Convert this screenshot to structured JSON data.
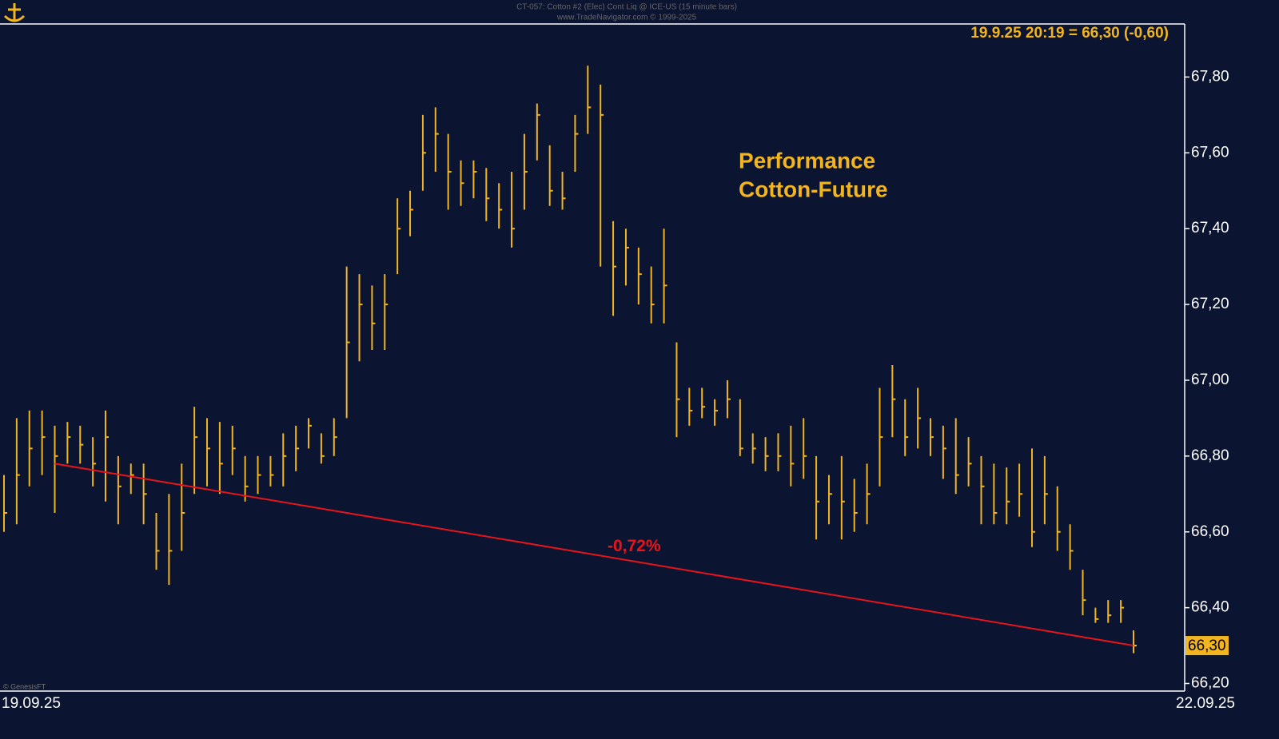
{
  "chart_data": {
    "type": "ohlc",
    "title": "CT-057: Cotton #2 (Elec) Cont Liq @ ICE-US (15 minute bars)",
    "subtitle": "www.TradeNavigator.com © 1999-2025",
    "header": "19.9.25 20:19 = 66,30 (-0,60)",
    "annotation": [
      "Performance",
      "Cotton-Future"
    ],
    "footnote": "© GenesisFT",
    "x_labels": [
      "19.09.25",
      "22.09.25"
    ],
    "color": "#f2b51f",
    "high": [
      66.75,
      66.9,
      66.92,
      66.92,
      66.88,
      66.89,
      66.88,
      66.85,
      66.92,
      66.8,
      66.78,
      66.78,
      66.65,
      66.7,
      66.78,
      66.93,
      66.9,
      66.89,
      66.88,
      66.8,
      66.8,
      66.8,
      66.86,
      66.88,
      66.9,
      66.86,
      66.9,
      67.3,
      67.28,
      67.25,
      67.28,
      67.48,
      67.5,
      67.7,
      67.72,
      67.65,
      67.58,
      67.58,
      67.56,
      67.52,
      67.55,
      67.65,
      67.73,
      67.62,
      67.55,
      67.7,
      67.83,
      67.78,
      67.42,
      67.4,
      67.35,
      67.3,
      67.4,
      67.1,
      66.98,
      66.98,
      66.95,
      67.0,
      66.95,
      66.86,
      66.85,
      66.86,
      66.88,
      66.9,
      66.8,
      66.75,
      66.8,
      66.74,
      66.78,
      66.98,
      67.04,
      66.95,
      66.98,
      66.9,
      66.88,
      66.9,
      66.85,
      66.8,
      66.78,
      66.77,
      66.78,
      66.82,
      66.8,
      66.72,
      66.62,
      66.5,
      66.4,
      66.42,
      66.42,
      66.34
    ],
    "low": [
      66.6,
      66.62,
      66.72,
      66.75,
      66.65,
      66.78,
      66.78,
      66.72,
      66.68,
      66.62,
      66.7,
      66.62,
      66.5,
      66.46,
      66.55,
      66.7,
      66.72,
      66.7,
      66.75,
      66.68,
      66.7,
      66.72,
      66.72,
      66.76,
      66.82,
      66.78,
      66.8,
      66.9,
      67.05,
      67.08,
      67.08,
      67.28,
      67.38,
      67.5,
      67.55,
      67.45,
      67.46,
      67.48,
      67.42,
      67.4,
      67.35,
      67.45,
      67.58,
      67.46,
      67.45,
      67.55,
      67.65,
      67.3,
      67.17,
      67.25,
      67.2,
      67.15,
      67.15,
      66.85,
      66.88,
      66.9,
      66.88,
      66.9,
      66.8,
      66.78,
      66.76,
      66.76,
      66.72,
      66.74,
      66.58,
      66.62,
      66.58,
      66.6,
      66.62,
      66.72,
      66.85,
      66.8,
      66.82,
      66.8,
      66.74,
      66.7,
      66.72,
      66.62,
      66.62,
      66.62,
      66.64,
      66.56,
      66.62,
      66.55,
      66.5,
      66.38,
      66.36,
      66.36,
      66.36,
      66.28
    ],
    "close": [
      66.65,
      66.75,
      66.82,
      66.85,
      66.8,
      66.85,
      66.83,
      66.78,
      66.85,
      66.72,
      66.75,
      66.7,
      66.55,
      66.55,
      66.65,
      66.85,
      66.82,
      66.78,
      66.82,
      66.72,
      66.75,
      66.75,
      66.8,
      66.82,
      66.88,
      66.8,
      66.85,
      67.1,
      67.2,
      67.15,
      67.2,
      67.4,
      67.45,
      67.6,
      67.65,
      67.55,
      67.52,
      67.55,
      67.48,
      67.45,
      67.4,
      67.55,
      67.7,
      67.5,
      67.48,
      67.65,
      67.72,
      67.7,
      67.3,
      67.35,
      67.28,
      67.2,
      67.25,
      66.95,
      66.92,
      66.93,
      66.92,
      66.95,
      66.82,
      66.82,
      66.8,
      66.8,
      66.78,
      66.8,
      66.68,
      66.7,
      66.68,
      66.65,
      66.7,
      66.85,
      66.95,
      66.85,
      66.9,
      66.85,
      66.82,
      66.75,
      66.78,
      66.72,
      66.65,
      66.68,
      66.7,
      66.6,
      66.7,
      66.6,
      66.55,
      66.42,
      66.37,
      66.38,
      66.4,
      66.3
    ],
    "last_label": "66,30",
    "trendline": {
      "start": {
        "index": 4,
        "value": 66.78
      },
      "end": {
        "index": 89,
        "value": 66.3
      },
      "label": "-0,72%",
      "color": "#e8141c"
    },
    "ylim": [
      66.18,
      67.94
    ],
    "yticks": [
      {
        "value": 66.2,
        "label": "66,20"
      },
      {
        "value": 66.4,
        "label": "66,40"
      },
      {
        "value": 66.6,
        "label": "66,60"
      },
      {
        "value": 66.8,
        "label": "66,80"
      },
      {
        "value": 67.0,
        "label": "67,00"
      },
      {
        "value": 67.2,
        "label": "67,20"
      },
      {
        "value": 67.4,
        "label": "67,40"
      },
      {
        "value": 67.6,
        "label": "67,60"
      },
      {
        "value": 67.8,
        "label": "67,80"
      }
    ]
  }
}
